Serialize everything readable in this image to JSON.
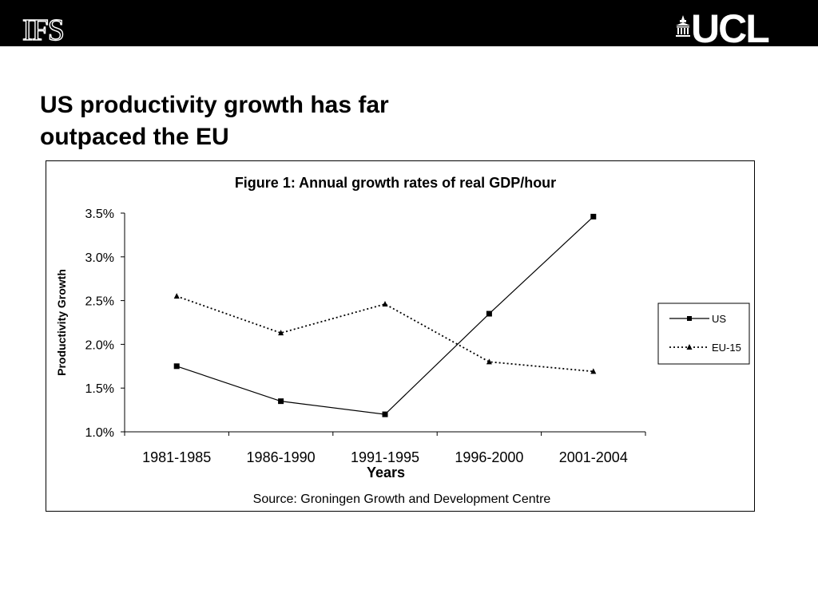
{
  "header": {
    "left_logo": "IFS",
    "right_logo": "UCL"
  },
  "slide": {
    "title_line1": "US productivity growth has far",
    "title_line2": "outpaced the EU"
  },
  "chart_data": {
    "type": "line",
    "title": "Figure 1:  Annual growth rates of real GDP/hour",
    "xlabel": "Years",
    "ylabel": "Productivity Growth",
    "source": "Source: Groningen Growth and Development Centre",
    "categories": [
      "1981-1985",
      "1986-1990",
      "1991-1995",
      "1996-2000",
      "2001-2004"
    ],
    "ylim": [
      1.0,
      3.5
    ],
    "yticks": [
      "1.0%",
      "1.5%",
      "2.0%",
      "2.5%",
      "3.0%",
      "3.5%"
    ],
    "grid": false,
    "legend_position": "right",
    "series": [
      {
        "name": "US",
        "values": [
          1.75,
          1.35,
          1.2,
          2.35,
          3.46
        ],
        "marker": "square",
        "line_style": "solid"
      },
      {
        "name": "EU-15",
        "values": [
          2.55,
          2.13,
          2.46,
          1.8,
          1.69
        ],
        "marker": "triangle",
        "line_style": "dotted"
      }
    ]
  }
}
